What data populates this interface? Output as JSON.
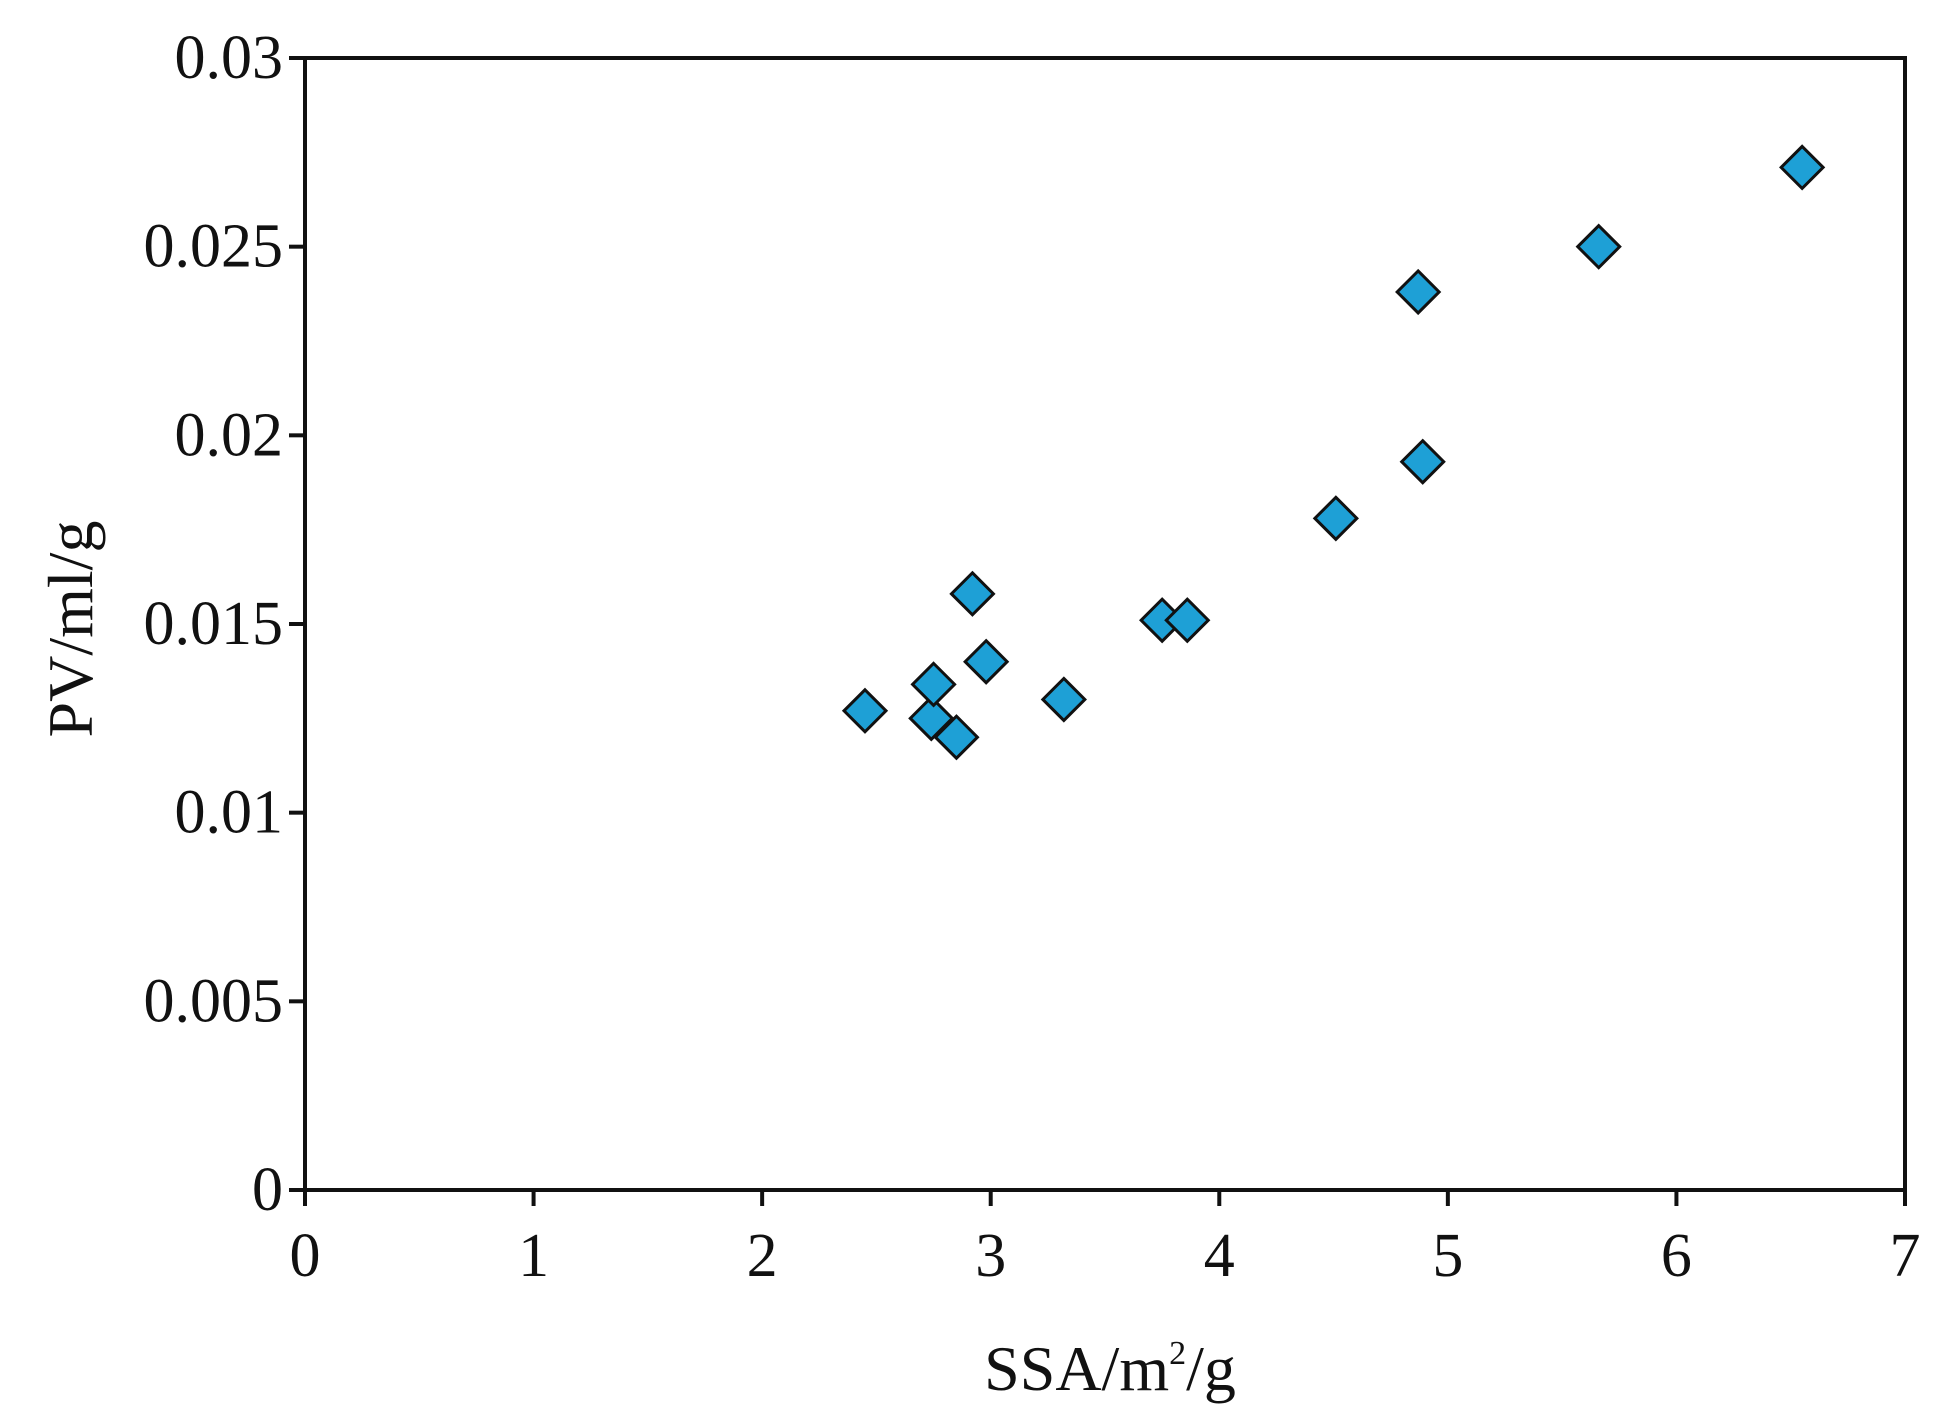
{
  "chart_data": {
    "type": "scatter",
    "title": "",
    "xlabel": {
      "prefix": "SSA/m",
      "superscript": "2",
      "suffix": "/g"
    },
    "ylabel": "PV/ml/g",
    "xlim": [
      0,
      7
    ],
    "ylim": [
      0,
      0.03
    ],
    "x_ticks": [
      0,
      1,
      2,
      3,
      4,
      5,
      6,
      7
    ],
    "y_ticks": [
      0,
      0.005,
      0.01,
      0.015,
      0.02,
      0.025,
      0.03
    ],
    "x_tick_labels": [
      "0",
      "1",
      "2",
      "3",
      "4",
      "5",
      "6",
      "7"
    ],
    "y_tick_labels": [
      "0",
      "0.005",
      "0.01",
      "0.015",
      "0.02",
      "0.025",
      "0.03"
    ],
    "grid": false,
    "marker": "diamond",
    "marker_color": "#1ea0d6",
    "marker_edge_color": "#111111",
    "series": [
      {
        "points": [
          {
            "x": 2.45,
            "y": 0.0127
          },
          {
            "x": 2.74,
            "y": 0.0125
          },
          {
            "x": 2.75,
            "y": 0.0134
          },
          {
            "x": 2.85,
            "y": 0.012
          },
          {
            "x": 2.92,
            "y": 0.0158
          },
          {
            "x": 2.98,
            "y": 0.014
          },
          {
            "x": 3.32,
            "y": 0.013
          },
          {
            "x": 3.75,
            "y": 0.0151
          },
          {
            "x": 3.86,
            "y": 0.0151
          },
          {
            "x": 4.51,
            "y": 0.0178
          },
          {
            "x": 4.87,
            "y": 0.0238
          },
          {
            "x": 4.89,
            "y": 0.0193
          },
          {
            "x": 5.66,
            "y": 0.025
          },
          {
            "x": 6.55,
            "y": 0.0271
          }
        ]
      }
    ]
  }
}
